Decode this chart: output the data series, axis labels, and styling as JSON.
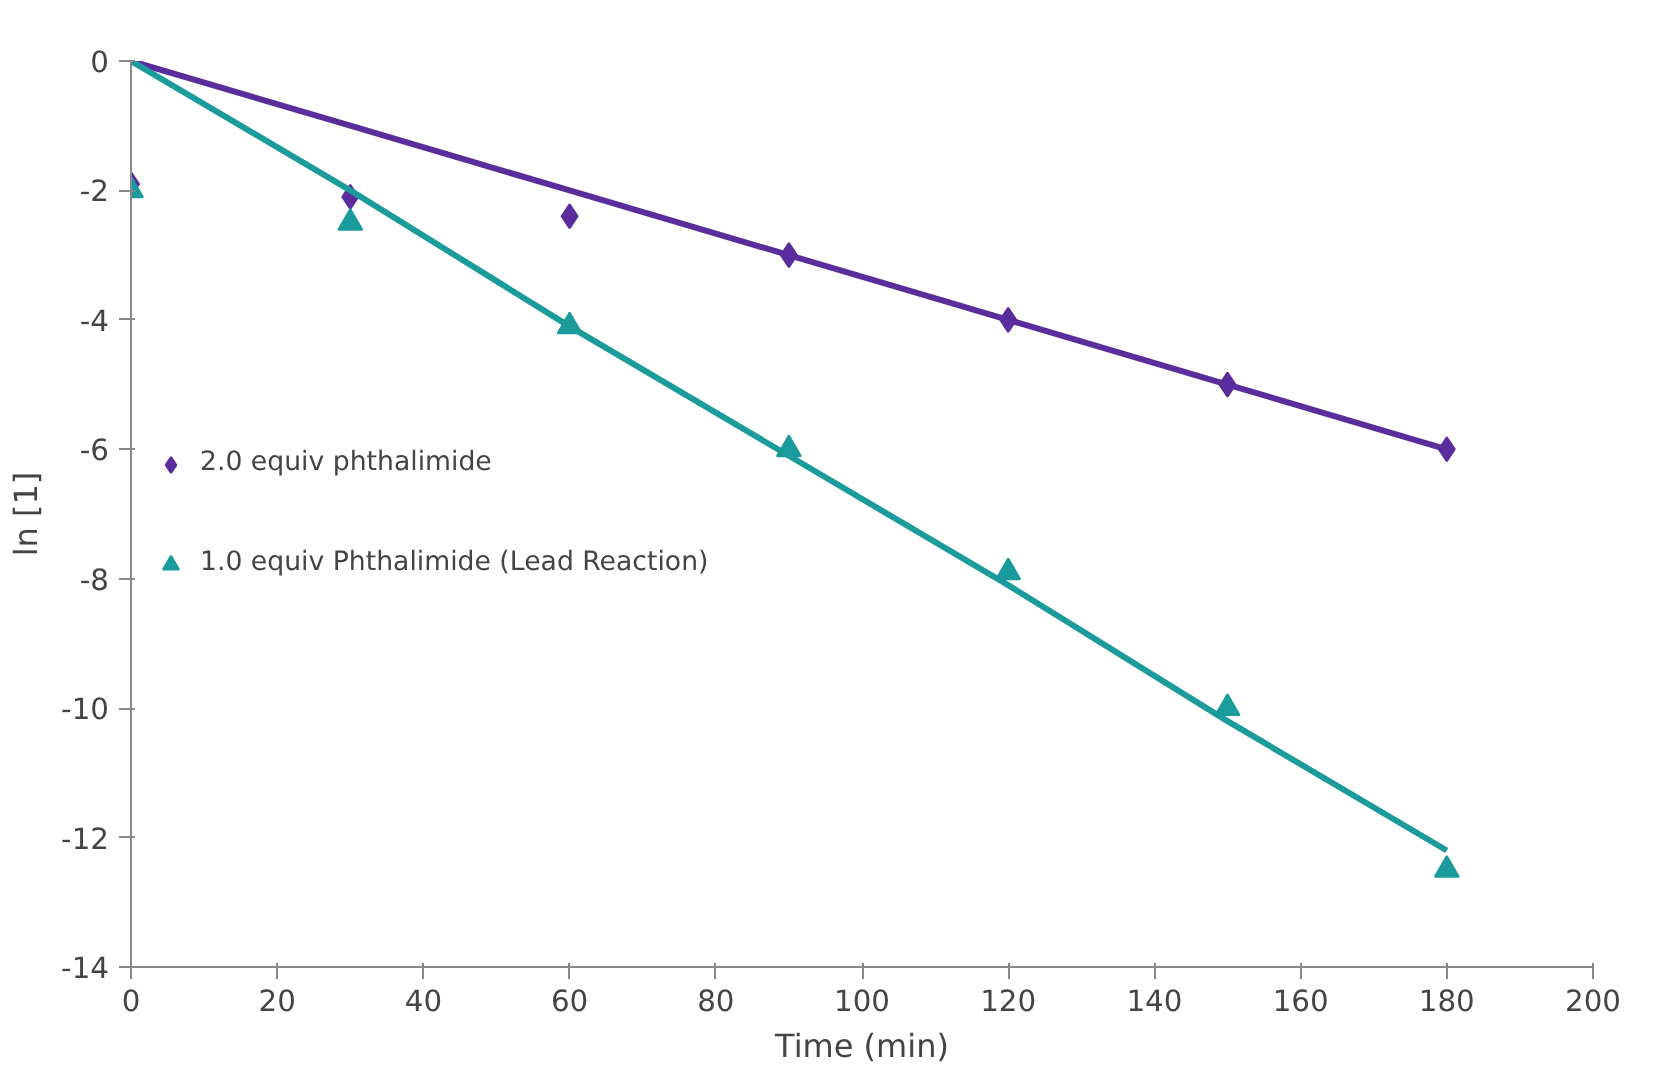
{
  "chart_data": {
    "type": "scatter",
    "xlabel": "Time (min)",
    "ylabel": "ln [1]",
    "x": [
      0,
      30,
      60,
      90,
      120,
      150,
      180
    ],
    "series": [
      {
        "name": "2.0 equiv phthalimide",
        "color": "#5b2d9c",
        "marker": "diamond",
        "values": [
          -1.9,
          -2.1,
          -2.4,
          -3.0,
          -4.0,
          -5.0,
          -6.0
        ]
      },
      {
        "name": "1.0 equiv Phthalimide (Lead Reaction)",
        "color": "#1b9b9b",
        "marker": "triangle",
        "values": [
          -2.0,
          -2.5,
          -4.1,
          -6.0,
          -7.9,
          -10.0,
          -12.5
        ]
      },
      {
        "type": "line",
        "color": "#5b2d9c",
        "values": [
          0,
          -1.0,
          -2.0,
          -3.0,
          -4.0,
          -5.0,
          -6.0
        ]
      },
      {
        "type": "line",
        "color": "#1b9b9b",
        "values": [
          0,
          -2.0,
          -4.1,
          -6.1,
          -8.1,
          -10.2,
          -12.2
        ]
      }
    ],
    "xlim": [
      0,
      200
    ],
    "xticks": [
      0,
      20,
      40,
      60,
      80,
      100,
      120,
      140,
      160,
      180,
      200
    ],
    "ylim": [
      -14,
      0
    ],
    "yticks": [
      0,
      -2,
      -4,
      -6,
      -8,
      -10,
      -12,
      -14
    ],
    "grid": false,
    "legend": "left"
  }
}
